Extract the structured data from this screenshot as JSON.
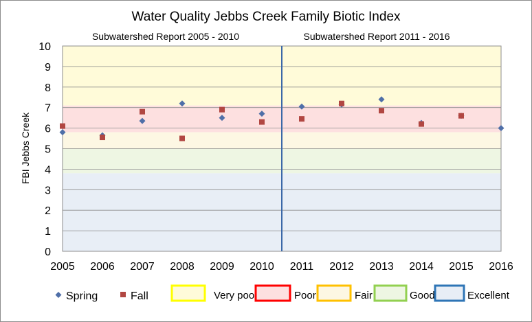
{
  "chart_data": {
    "type": "scatter",
    "title": "Water Quality Jebbs Creek Family Biotic Index",
    "xlabel": "",
    "ylabel": "FBI  Jebbs Creek",
    "x_ticks": [
      "2005",
      "2006",
      "2007",
      "2008",
      "2009",
      "2010",
      "2011",
      "2012",
      "2013",
      "2014",
      "2015",
      "2016"
    ],
    "xlim": [
      2005,
      2016
    ],
    "ylim": [
      0,
      10
    ],
    "y_ticks": [
      "0",
      "1",
      "2",
      "3",
      "4",
      "5",
      "6",
      "7",
      "8",
      "9",
      "10"
    ],
    "grid": "horizontal",
    "legend_position": "bottom",
    "divider_x": 2010.5,
    "period_labels": [
      {
        "text": "Subwatershed  Report 2005 - 2010"
      },
      {
        "text": "Subwatershed  Report 2011 - 2016"
      }
    ],
    "series": [
      {
        "name": "Spring",
        "marker": "diamond",
        "color": "#4f6fa8",
        "points": [
          [
            2005,
            5.8
          ],
          [
            2006,
            5.65
          ],
          [
            2007,
            6.35
          ],
          [
            2008,
            7.2
          ],
          [
            2009,
            6.5
          ],
          [
            2010,
            6.7
          ],
          [
            2011,
            7.05
          ],
          [
            2012,
            7.15
          ],
          [
            2013,
            7.4
          ],
          [
            2014,
            6.25
          ],
          [
            2015,
            6.6
          ],
          [
            2016,
            6.0
          ]
        ]
      },
      {
        "name": "Fall",
        "marker": "square",
        "color": "#b14742",
        "points": [
          [
            2005,
            6.1
          ],
          [
            2006,
            5.55
          ],
          [
            2007,
            6.8
          ],
          [
            2008,
            5.5
          ],
          [
            2009,
            6.9
          ],
          [
            2010,
            6.3
          ],
          [
            2011,
            6.45
          ],
          [
            2012,
            7.2
          ],
          [
            2013,
            6.85
          ],
          [
            2014,
            6.2
          ],
          [
            2015,
            6.6
          ]
        ]
      }
    ],
    "bands": [
      {
        "name": "Very poor",
        "from": 7.1,
        "to": 10,
        "fill": "#fffbd9",
        "border": "#ffff00"
      },
      {
        "name": "Poor",
        "from": 5.8,
        "to": 7.1,
        "fill": "#fde0e0",
        "border": "#ff0000"
      },
      {
        "name": "Fair",
        "from": 5.0,
        "to": 5.8,
        "fill": "#fdf7e3",
        "border": "#ffc000"
      },
      {
        "name": "Good",
        "from": 3.8,
        "to": 5.0,
        "fill": "#eef6e3",
        "border": "#92d050"
      },
      {
        "name": "Excellent",
        "from": 0,
        "to": 3.8,
        "fill": "#e8eef6",
        "border": "#2e75b6"
      }
    ]
  }
}
